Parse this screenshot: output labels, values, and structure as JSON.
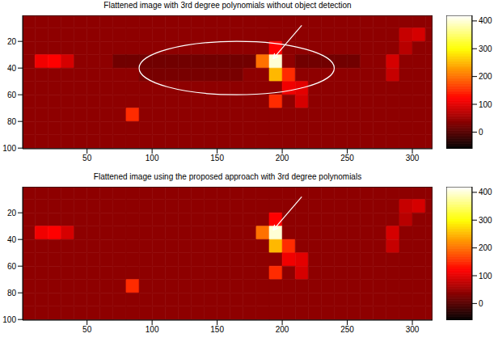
{
  "chart_data": [
    {
      "type": "heatmap",
      "title": "Flattened image with 3rd degree polynomials without object detection",
      "color": "hot",
      "xlim": [
        0.5,
        315.5
      ],
      "ylim": [
        0.5,
        100.5
      ],
      "xticks": [
        50,
        100,
        150,
        200,
        250,
        300
      ],
      "yticks": [
        20,
        40,
        60,
        80,
        100
      ],
      "x": [
        5,
        15,
        25,
        35,
        45,
        55,
        65,
        75,
        85,
        95,
        105,
        115,
        125,
        135,
        145,
        155,
        165,
        175,
        185,
        195,
        205,
        215,
        225,
        235,
        245,
        255,
        265,
        275,
        285,
        295,
        305,
        315
      ],
      "y": [
        5,
        15,
        25,
        35,
        45,
        55,
        65,
        75,
        85,
        95
      ],
      "colorbar_lim": [
        -60,
        420
      ],
      "colorbar_ticks": [
        0,
        100,
        200,
        300,
        400
      ],
      "cells": [
        [
          40,
          40,
          40,
          40,
          40,
          40,
          40,
          40,
          40,
          40,
          40,
          40,
          40,
          40,
          40,
          40,
          40,
          40,
          40,
          40,
          40,
          40,
          40,
          40,
          40,
          40,
          40,
          40,
          40,
          40,
          40,
          40
        ],
        [
          40,
          40,
          40,
          40,
          40,
          40,
          40,
          40,
          40,
          40,
          40,
          40,
          40,
          40,
          40,
          40,
          40,
          40,
          40,
          40,
          40,
          40,
          40,
          40,
          40,
          40,
          40,
          40,
          40,
          80,
          90,
          40
        ],
        [
          40,
          40,
          40,
          40,
          40,
          40,
          40,
          40,
          40,
          40,
          40,
          40,
          40,
          40,
          40,
          40,
          40,
          40,
          40,
          120,
          40,
          40,
          40,
          40,
          40,
          40,
          40,
          40,
          40,
          70,
          40,
          40
        ],
        [
          40,
          110,
          120,
          90,
          40,
          40,
          40,
          20,
          20,
          20,
          20,
          20,
          20,
          20,
          20,
          20,
          20,
          20,
          200,
          400,
          40,
          20,
          20,
          20,
          20,
          20,
          40,
          40,
          90,
          40,
          40,
          40
        ],
        [
          40,
          40,
          40,
          40,
          40,
          40,
          40,
          40,
          40,
          25,
          25,
          25,
          25,
          25,
          25,
          25,
          25,
          40,
          40,
          250,
          150,
          40,
          40,
          40,
          40,
          40,
          40,
          40,
          80,
          40,
          40,
          40
        ],
        [
          40,
          40,
          40,
          40,
          40,
          40,
          40,
          40,
          40,
          40,
          40,
          40,
          40,
          40,
          40,
          40,
          40,
          40,
          40,
          40,
          110,
          100,
          40,
          40,
          40,
          40,
          40,
          40,
          40,
          40,
          40,
          40
        ],
        [
          40,
          40,
          40,
          40,
          40,
          40,
          40,
          40,
          40,
          40,
          40,
          40,
          40,
          40,
          40,
          40,
          40,
          40,
          40,
          150,
          40,
          90,
          40,
          40,
          40,
          40,
          40,
          40,
          40,
          40,
          40,
          40
        ],
        [
          40,
          40,
          40,
          40,
          40,
          40,
          40,
          40,
          150,
          40,
          40,
          40,
          40,
          40,
          40,
          40,
          40,
          40,
          40,
          40,
          40,
          40,
          40,
          40,
          40,
          40,
          40,
          40,
          40,
          40,
          40,
          40
        ],
        [
          40,
          40,
          40,
          40,
          40,
          40,
          40,
          40,
          40,
          40,
          40,
          40,
          40,
          40,
          40,
          40,
          40,
          40,
          40,
          40,
          40,
          40,
          40,
          40,
          40,
          40,
          40,
          40,
          40,
          40,
          40,
          40
        ],
        [
          40,
          40,
          40,
          40,
          40,
          40,
          40,
          40,
          40,
          40,
          40,
          40,
          40,
          40,
          40,
          40,
          40,
          40,
          40,
          40,
          40,
          40,
          40,
          40,
          40,
          40,
          40,
          40,
          40,
          40,
          40,
          40
        ]
      ]
    },
    {
      "type": "heatmap",
      "title": "Flattened image using the proposed approach with 3rd degree polynomials",
      "color": "hot",
      "xlim": [
        0.5,
        315.5
      ],
      "ylim": [
        0.5,
        100.5
      ],
      "xticks": [
        50,
        100,
        150,
        200,
        250,
        300
      ],
      "yticks": [
        20,
        40,
        60,
        80,
        100
      ],
      "x": [
        5,
        15,
        25,
        35,
        45,
        55,
        65,
        75,
        85,
        95,
        105,
        115,
        125,
        135,
        145,
        155,
        165,
        175,
        185,
        195,
        205,
        215,
        225,
        235,
        245,
        255,
        265,
        275,
        285,
        295,
        305,
        315
      ],
      "y": [
        5,
        15,
        25,
        35,
        45,
        55,
        65,
        75,
        85,
        95
      ],
      "colorbar_lim": [
        -60,
        420
      ],
      "colorbar_ticks": [
        0,
        100,
        200,
        300,
        400
      ],
      "cells": [
        [
          40,
          40,
          40,
          40,
          40,
          40,
          40,
          40,
          40,
          40,
          40,
          40,
          40,
          40,
          40,
          40,
          40,
          40,
          40,
          40,
          40,
          40,
          40,
          40,
          40,
          40,
          40,
          40,
          40,
          40,
          40,
          40
        ],
        [
          40,
          40,
          40,
          40,
          40,
          40,
          40,
          40,
          40,
          40,
          40,
          40,
          40,
          40,
          40,
          40,
          40,
          40,
          40,
          40,
          40,
          40,
          40,
          40,
          40,
          40,
          40,
          40,
          40,
          80,
          90,
          40
        ],
        [
          40,
          40,
          40,
          40,
          40,
          40,
          40,
          40,
          40,
          40,
          40,
          40,
          40,
          40,
          40,
          40,
          40,
          40,
          40,
          120,
          40,
          40,
          40,
          40,
          40,
          40,
          40,
          40,
          40,
          70,
          40,
          40
        ],
        [
          40,
          110,
          120,
          90,
          40,
          40,
          40,
          40,
          40,
          40,
          40,
          40,
          40,
          40,
          40,
          40,
          40,
          40,
          200,
          400,
          40,
          40,
          40,
          40,
          40,
          40,
          40,
          40,
          90,
          40,
          40,
          40
        ],
        [
          40,
          40,
          40,
          40,
          40,
          40,
          40,
          40,
          40,
          40,
          40,
          40,
          40,
          40,
          40,
          40,
          40,
          40,
          40,
          250,
          150,
          40,
          40,
          40,
          40,
          40,
          40,
          40,
          80,
          40,
          40,
          40
        ],
        [
          40,
          40,
          40,
          40,
          40,
          40,
          40,
          40,
          40,
          40,
          40,
          40,
          40,
          40,
          40,
          40,
          40,
          40,
          40,
          40,
          110,
          100,
          40,
          40,
          40,
          40,
          40,
          40,
          40,
          40,
          40,
          40
        ],
        [
          40,
          40,
          40,
          40,
          40,
          40,
          40,
          40,
          40,
          40,
          40,
          40,
          40,
          40,
          40,
          40,
          40,
          40,
          40,
          150,
          40,
          90,
          40,
          40,
          40,
          40,
          40,
          40,
          40,
          40,
          40,
          40
        ],
        [
          40,
          40,
          40,
          40,
          40,
          40,
          40,
          40,
          150,
          40,
          40,
          40,
          40,
          40,
          40,
          40,
          40,
          40,
          40,
          40,
          40,
          40,
          40,
          40,
          40,
          40,
          40,
          40,
          40,
          40,
          40,
          40
        ],
        [
          40,
          40,
          40,
          40,
          40,
          40,
          40,
          40,
          40,
          40,
          40,
          40,
          40,
          40,
          40,
          40,
          40,
          40,
          40,
          40,
          40,
          40,
          40,
          40,
          40,
          40,
          40,
          40,
          40,
          40,
          40,
          40
        ],
        [
          40,
          40,
          40,
          40,
          40,
          40,
          40,
          40,
          40,
          40,
          40,
          40,
          40,
          40,
          40,
          40,
          40,
          40,
          40,
          40,
          40,
          40,
          40,
          40,
          40,
          40,
          40,
          40,
          40,
          40,
          40,
          40
        ]
      ]
    }
  ]
}
